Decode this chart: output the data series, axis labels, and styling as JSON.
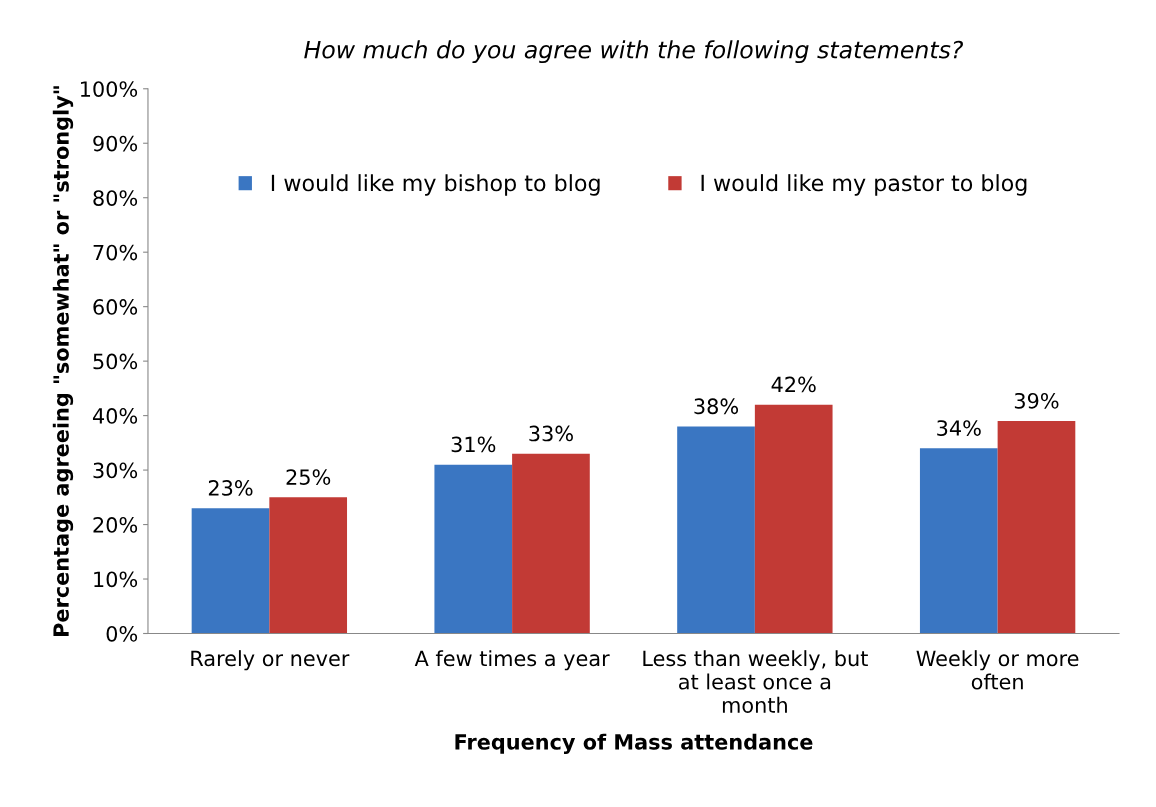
{
  "chart_data": {
    "type": "bar",
    "title": "How much do you agree with the following statements?",
    "xlabel": "Frequency of Mass attendance",
    "ylabel": "Percentage agreeing \"somewhat\" or \"strongly\"",
    "categories": [
      "Rarely or never",
      "A few times a year",
      "Less than weekly, but\nat least once a\nmonth",
      "Weekly or more\noften"
    ],
    "series": [
      {
        "name": "I would like my bishop to blog",
        "color": "#3a76c2",
        "values": [
          23,
          31,
          38,
          34
        ],
        "value_labels": [
          "23%",
          "31%",
          "38%",
          "34%"
        ]
      },
      {
        "name": "I would like my pastor to blog",
        "color": "#c23a35",
        "values": [
          25,
          33,
          42,
          39
        ],
        "value_labels": [
          "25%",
          "33%",
          "42%",
          "39%"
        ]
      }
    ],
    "ylim": [
      0,
      100
    ],
    "yticks": [
      {
        "value": 0,
        "label": "0%"
      },
      {
        "value": 10,
        "label": "10%"
      },
      {
        "value": 20,
        "label": "20%"
      },
      {
        "value": 30,
        "label": "30%"
      },
      {
        "value": 40,
        "label": "40%"
      },
      {
        "value": 50,
        "label": "50%"
      },
      {
        "value": 60,
        "label": "60%"
      },
      {
        "value": 70,
        "label": "70%"
      },
      {
        "value": 80,
        "label": "80%"
      },
      {
        "value": 90,
        "label": "90%"
      },
      {
        "value": 100,
        "label": "100%"
      }
    ],
    "grid": false,
    "legend": "top"
  }
}
